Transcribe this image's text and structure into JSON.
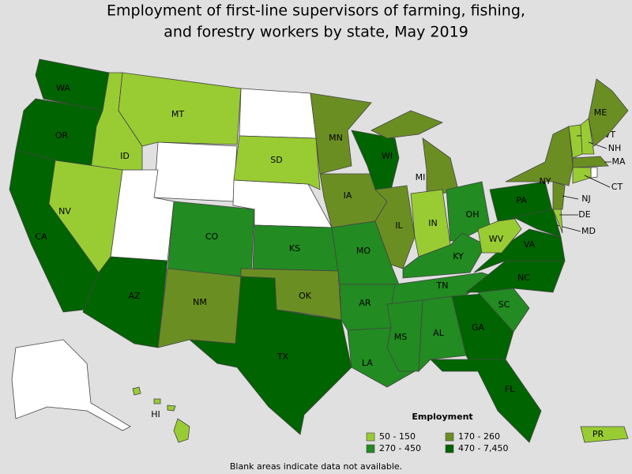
{
  "title_lines": [
    "Employment of first-line supervisors of farming, fishing,",
    "and forestry workers by state, May 2019"
  ],
  "legend": {
    "title": "Employment",
    "items": [
      {
        "label": "50 - 150",
        "color": "#99cc33"
      },
      {
        "label": "170 - 260",
        "color": "#6b8e23"
      },
      {
        "label": "270 - 450",
        "color": "#228b22"
      },
      {
        "label": "470 - 7,450",
        "color": "#006400"
      }
    ]
  },
  "states": [
    {
      "label": "WA",
      "color": "#006400"
    },
    {
      "label": "OR",
      "color": "#006400"
    },
    {
      "label": "CA",
      "color": "#006400"
    },
    {
      "label": "ID",
      "color": "#99cc33"
    },
    {
      "label": "NV",
      "color": "#99cc33"
    },
    {
      "label": "MT",
      "color": "#99cc33"
    },
    {
      "label": "AZ",
      "color": "#006400"
    },
    {
      "label": "CO",
      "color": "#228b22"
    },
    {
      "label": "NM",
      "color": "#6b8e23"
    },
    {
      "label": "SD",
      "color": "#99cc33"
    },
    {
      "label": "KS",
      "color": "#228b22"
    },
    {
      "label": "OK",
      "color": "#6b8e23"
    },
    {
      "label": "TX",
      "color": "#006400"
    },
    {
      "label": "MN",
      "color": "#6b8e23"
    },
    {
      "label": "IA",
      "color": "#6b8e23"
    },
    {
      "label": "MO",
      "color": "#228b22"
    },
    {
      "label": "AR",
      "color": "#228b22"
    },
    {
      "label": "LA",
      "color": "#228b22"
    },
    {
      "label": "WI",
      "color": "#006400"
    },
    {
      "label": "IL",
      "color": "#6b8e23"
    },
    {
      "label": "MI",
      "color": "#6b8e23"
    },
    {
      "label": "IN",
      "color": "#99cc33"
    },
    {
      "label": "OH",
      "color": "#228b22"
    },
    {
      "label": "KY",
      "color": "#228b22"
    },
    {
      "label": "TN",
      "color": "#228b22"
    },
    {
      "label": "MS",
      "color": "#228b22"
    },
    {
      "label": "AL",
      "color": "#228b22"
    },
    {
      "label": "GA",
      "color": "#006400"
    },
    {
      "label": "FL",
      "color": "#006400"
    },
    {
      "label": "SC",
      "color": "#228b22"
    },
    {
      "label": "NC",
      "color": "#006400"
    },
    {
      "label": "VA",
      "color": "#006400"
    },
    {
      "label": "WV",
      "color": "#99cc33"
    },
    {
      "label": "PA",
      "color": "#006400"
    },
    {
      "label": "MD",
      "color": "#006400"
    },
    {
      "label": "DE",
      "color": "#99cc33"
    },
    {
      "label": "NJ",
      "color": "#6b8e23"
    },
    {
      "label": "NY",
      "color": "#6b8e23"
    },
    {
      "label": "VT",
      "color": "#99cc33"
    },
    {
      "label": "NH",
      "color": "#99cc33"
    },
    {
      "label": "ME",
      "color": "#6b8e23"
    },
    {
      "label": "MA",
      "color": "#6b8e23"
    },
    {
      "label": "CT",
      "color": "#99cc33"
    },
    {
      "label": "HI",
      "color": "#99cc33"
    },
    {
      "label": "PR",
      "color": "#99cc33"
    }
  ],
  "note": "Blank areas indicate data not available."
}
